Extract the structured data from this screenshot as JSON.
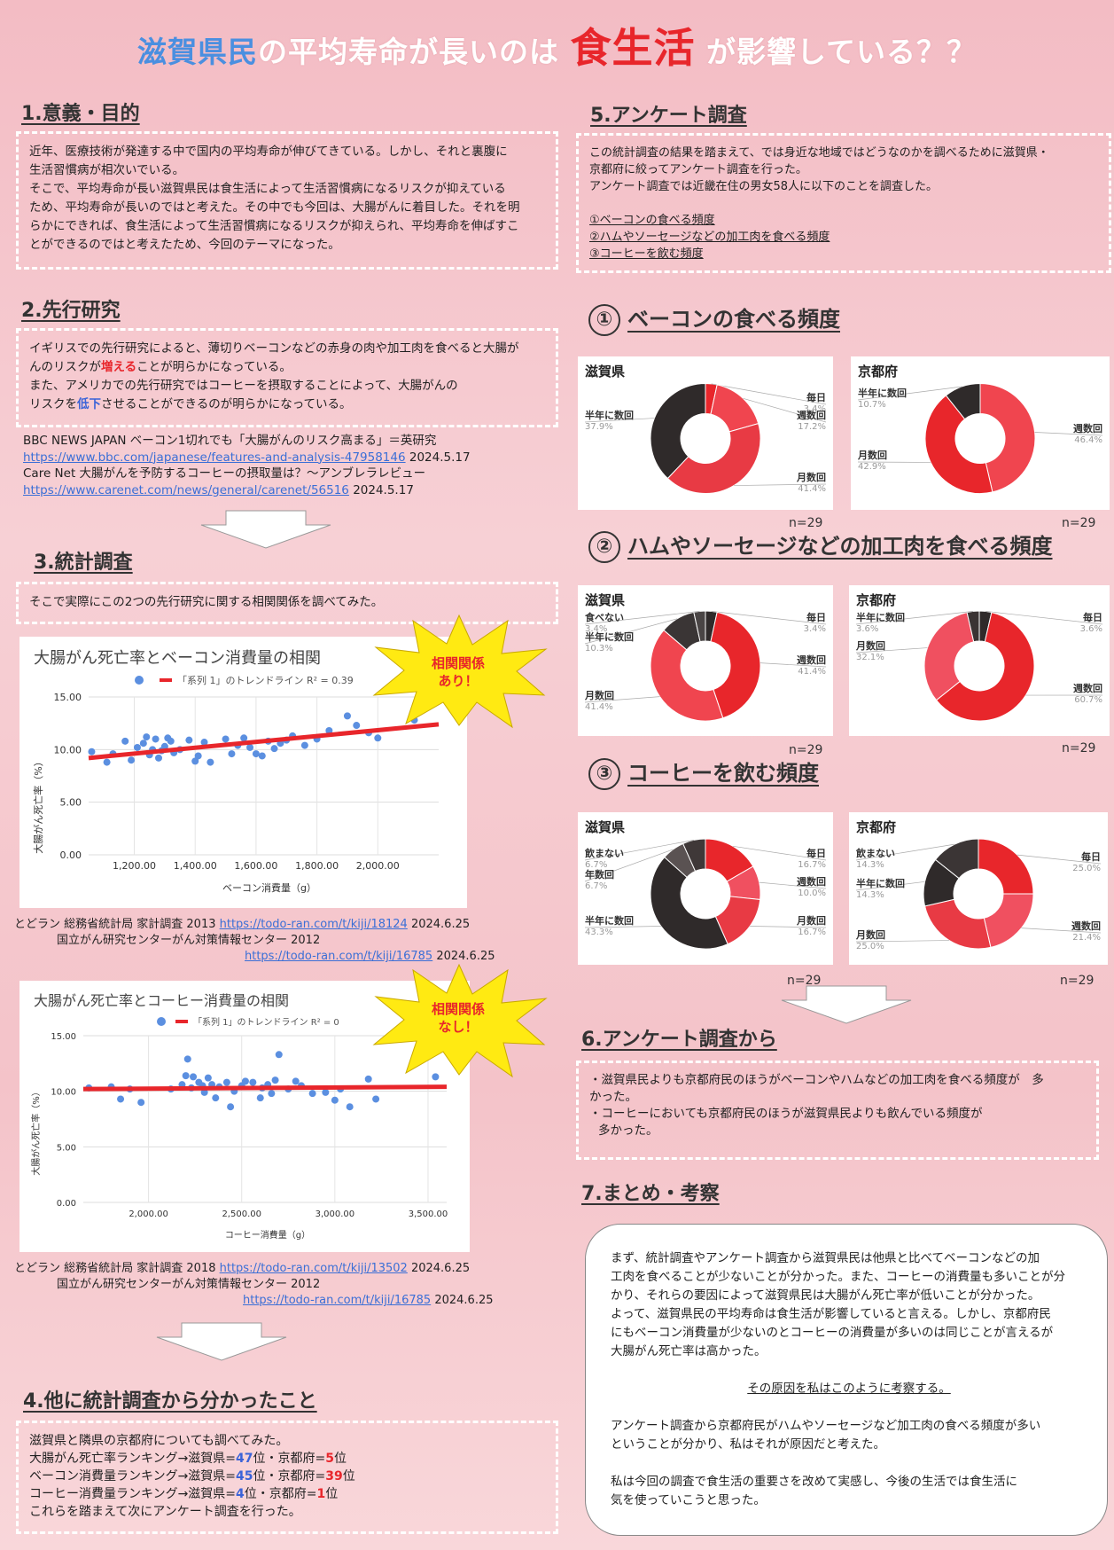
{
  "title": {
    "part1": "滋賀県民",
    "part2": "の平均寿命が長いのは",
    "part3": "食生活",
    "part4": "が影響している？？"
  },
  "s1": {
    "heading": "1.意義・目的",
    "lines": [
      "近年、医療技術が発達する中で国内の平均寿命が伸びてきている。しかし、それと裏腹に",
      "生活習慣病が相次いでいる。",
      "そこで、平均寿命が長い滋賀県民は食生活によって生活習慣病になるリスクが抑えている",
      "ため、平均寿命が長いのではと考えた。その中でも今回は、大腸がんに着目した。それを明",
      "らかにできれば、食生活によって生活習慣病になるリスクが抑えられ、平均寿命を伸ばすこ",
      "とができるのではと考えたため、今回のテーマになった。"
    ]
  },
  "s2": {
    "heading": "2.先行研究",
    "l1": "イギリスでの先行研究によると、薄切りベーコンなどの赤身の肉や加工肉を食べると大腸が",
    "l2a": "んのリスクが",
    "l2b": "増える",
    "l2c": "ことが明らかになっている。",
    "l3": "また、アメリカでの先行研究ではコーヒーを摂取することによって、大腸がんの",
    "l4a": "リスクを",
    "l4b": "低下",
    "l4c": "させることができるのが明らかになっている。",
    "ref1": "BBC NEWS JAPAN ベーコン1切れでも「大腸がんのリスク高まる」＝英研究",
    "ref1url": "https://www.bbc.com/japanese/features-and-analysis-47958146",
    "ref1date": " 2024.5.17",
    "ref2": "Care Net 大腸がんを予防するコーヒーの摂取量は？～アンブレラレビュー",
    "ref2url": "https://www.carenet.com/news/general/carenet/56516",
    "ref2date": " 2024.5.17"
  },
  "s3": {
    "heading": "3.統計調査",
    "intro": "そこで実際にこの2つの先行研究に関する相関関係を調べてみた。",
    "burst1a": "相関関係",
    "burst1b": "あり！",
    "burst2a": "相関関係",
    "burst2b": "なし！",
    "src1a": "とどラン 総務省統計局 家計調査 2013 ",
    "src1url": "https://todo-ran.com/t/kiji/18124",
    "src1date": " 2024.6.25",
    "src1b": "国立がん研究センターがん対策情報センター 2012",
    "src1url2": "https://todo-ran.com/t/kiji/16785",
    "src1date2": " 2024.6.25",
    "src2a": "とどラン 総務省統計局 家計調査 2018 ",
    "src2url": "https://todo-ran.com/t/kiji/13502",
    "src2date": " 2024.6.25",
    "src2b": "国立がん研究センターがん対策情報センター 2012",
    "src2url2": "https://todo-ran.com/t/kiji/16785",
    "src2date2": " 2024.6.25"
  },
  "chart_data": [
    {
      "type": "scatter",
      "title": "大腸がん死亡率とベーコン消費量の相関",
      "xlabel": "ベーコン消費量（g）",
      "ylabel": "大腸がん死亡率（%）",
      "legend": "「系列 1」のトレンドライン R² = 0.39",
      "xlim": [
        1050,
        2200
      ],
      "ylim": [
        0,
        15
      ],
      "xticks": [
        "1,200.00",
        "1,400.00",
        "1,600.00",
        "1,800.00",
        "2,000.00"
      ],
      "yticks": [
        "0.00",
        "5.00",
        "10.00",
        "15.00"
      ],
      "points": [
        [
          1060,
          9.8
        ],
        [
          1110,
          8.8
        ],
        [
          1130,
          9.6
        ],
        [
          1170,
          10.8
        ],
        [
          1190,
          9.0
        ],
        [
          1210,
          10.2
        ],
        [
          1230,
          10.6
        ],
        [
          1240,
          11.2
        ],
        [
          1250,
          9.5
        ],
        [
          1260,
          10.0
        ],
        [
          1270,
          11.0
        ],
        [
          1280,
          9.2
        ],
        [
          1290,
          9.9
        ],
        [
          1300,
          10.3
        ],
        [
          1310,
          11.1
        ],
        [
          1320,
          10.8
        ],
        [
          1330,
          9.7
        ],
        [
          1350,
          10.0
        ],
        [
          1380,
          10.9
        ],
        [
          1400,
          8.9
        ],
        [
          1410,
          9.4
        ],
        [
          1430,
          10.7
        ],
        [
          1450,
          8.8
        ],
        [
          1500,
          11.0
        ],
        [
          1520,
          9.6
        ],
        [
          1540,
          10.4
        ],
        [
          1560,
          11.1
        ],
        [
          1580,
          10.2
        ],
        [
          1600,
          9.6
        ],
        [
          1620,
          9.4
        ],
        [
          1640,
          10.8
        ],
        [
          1660,
          10.1
        ],
        [
          1680,
          10.6
        ],
        [
          1700,
          10.9
        ],
        [
          1720,
          11.3
        ],
        [
          1760,
          10.4
        ],
        [
          1800,
          11.0
        ],
        [
          1840,
          11.8
        ],
        [
          1900,
          13.2
        ],
        [
          1930,
          12.3
        ],
        [
          1970,
          11.6
        ],
        [
          2000,
          11.1
        ],
        [
          2120,
          12.8
        ]
      ],
      "trend": [
        [
          1050,
          9.2
        ],
        [
          2200,
          12.4
        ]
      ]
    },
    {
      "type": "scatter",
      "title": "大腸がん死亡率とコーヒー消費量の相関",
      "xlabel": "コーヒー消費量（g）",
      "ylabel": "大腸がん死亡率（%）",
      "legend": "「系列 1」のトレンドライン R² = 0",
      "xlim": [
        1650,
        3600
      ],
      "ylim": [
        0,
        15
      ],
      "xticks": [
        "2,000.00",
        "2,500.00",
        "3,000.00",
        "3,500.00"
      ],
      "yticks": [
        "0.00",
        "5.00",
        "10.00",
        "15.00"
      ],
      "points": [
        [
          1680,
          10.3
        ],
        [
          1800,
          10.4
        ],
        [
          1850,
          9.3
        ],
        [
          1900,
          10.2
        ],
        [
          1960,
          9.0
        ],
        [
          2120,
          10.2
        ],
        [
          2180,
          10.6
        ],
        [
          2200,
          11.4
        ],
        [
          2210,
          12.9
        ],
        [
          2230,
          10.3
        ],
        [
          2240,
          11.3
        ],
        [
          2270,
          10.8
        ],
        [
          2290,
          10.5
        ],
        [
          2300,
          9.9
        ],
        [
          2320,
          11.2
        ],
        [
          2340,
          10.6
        ],
        [
          2360,
          9.4
        ],
        [
          2380,
          10.4
        ],
        [
          2420,
          10.8
        ],
        [
          2440,
          8.6
        ],
        [
          2460,
          10.0
        ],
        [
          2500,
          10.5
        ],
        [
          2520,
          10.9
        ],
        [
          2560,
          10.8
        ],
        [
          2600,
          9.4
        ],
        [
          2610,
          10.3
        ],
        [
          2640,
          10.6
        ],
        [
          2660,
          9.8
        ],
        [
          2680,
          11.0
        ],
        [
          2700,
          13.3
        ],
        [
          2750,
          10.2
        ],
        [
          2790,
          10.9
        ],
        [
          2820,
          10.5
        ],
        [
          2880,
          9.8
        ],
        [
          2950,
          9.9
        ],
        [
          3000,
          9.2
        ],
        [
          3030,
          10.2
        ],
        [
          3080,
          8.6
        ],
        [
          3180,
          11.1
        ],
        [
          3220,
          9.3
        ],
        [
          3540,
          11.3
        ]
      ],
      "trend": [
        [
          1650,
          10.2
        ],
        [
          3600,
          10.4
        ]
      ]
    },
    {
      "type": "pie",
      "title": "ベーコンの食べる頻度 滋賀県",
      "n": "n=29",
      "slices": [
        {
          "label": "毎日",
          "value": 3.4
        },
        {
          "label": "週数回",
          "value": 17.2
        },
        {
          "label": "月数回",
          "value": 41.4
        },
        {
          "label": "半年に数回",
          "value": 37.9
        }
      ]
    },
    {
      "type": "pie",
      "title": "ベーコンの食べる頻度 京都府",
      "n": "n=29",
      "slices": [
        {
          "label": "週数回",
          "value": 46.4
        },
        {
          "label": "月数回",
          "value": 42.9
        },
        {
          "label": "半年に数回",
          "value": 10.7
        }
      ]
    },
    {
      "type": "pie",
      "title": "加工肉を食べる頻度 滋賀県",
      "n": "n=29",
      "slices": [
        {
          "label": "毎日",
          "value": 3.4
        },
        {
          "label": "週数回",
          "value": 41.4
        },
        {
          "label": "月数回",
          "value": 41.4
        },
        {
          "label": "半年に数回",
          "value": 10.3
        },
        {
          "label": "食べない",
          "value": 3.4
        }
      ]
    },
    {
      "type": "pie",
      "title": "加工肉を食べる頻度 京都府",
      "n": "n=29",
      "slices": [
        {
          "label": "毎日",
          "value": 3.6
        },
        {
          "label": "週数回",
          "value": 60.7
        },
        {
          "label": "月数回",
          "value": 32.1
        },
        {
          "label": "半年に数回",
          "value": 3.6
        }
      ]
    },
    {
      "type": "pie",
      "title": "コーヒーを飲む頻度 滋賀県",
      "n": "n=29",
      "slices": [
        {
          "label": "毎日",
          "value": 16.7
        },
        {
          "label": "週数回",
          "value": 10.0
        },
        {
          "label": "月数回",
          "value": 16.7
        },
        {
          "label": "半年に数回",
          "value": 43.3
        },
        {
          "label": "年数回",
          "value": 6.7
        },
        {
          "label": "飲まない",
          "value": 6.7
        }
      ]
    },
    {
      "type": "pie",
      "title": "コーヒーを飲む頻度 京都府",
      "n": "n=29",
      "slices": [
        {
          "label": "毎日",
          "value": 25.0
        },
        {
          "label": "週数回",
          "value": 21.4
        },
        {
          "label": "月数回",
          "value": 25.0
        },
        {
          "label": "半年に数回",
          "value": 14.3
        },
        {
          "label": "飲まない",
          "value": 14.3
        }
      ]
    }
  ],
  "s4": {
    "heading": "4.他に統計調査から分かったこと",
    "l1": "滋賀県と隣県の京都府についても調べてみた。",
    "r1a": "大腸がん死亡率ランキング→滋賀県=",
    "r1b": "47",
    "r1c": "位・京都府=",
    "r1d": "5",
    "r1e": "位",
    "r2a": "ベーコン消費量ランキング→滋賀県=",
    "r2b": "45",
    "r2c": "位・京都府=",
    "r2d": "39",
    "r2e": "位",
    "r3a": "コーヒー消費量ランキング→滋賀県=",
    "r3b": "4",
    "r3c": "位・京都府=",
    "r3d": "1",
    "r3e": "位",
    "l5": "これらを踏まえて次にアンケート調査を行った。"
  },
  "s5": {
    "heading": "5.アンケート調査",
    "lines": [
      "この統計調査の結果を踏まえて、では身近な地域ではどうなのかを調べるために滋賀県・",
      "京都府に絞ってアンケート調査を行った。",
      "アンケート調査では近畿在住の男女58人に以下のことを調査した。"
    ],
    "q1": "①ベーコンの食べる頻度",
    "q2": "②ハムやソーセージなどの加工肉を食べる頻度",
    "q3": "③コーヒーを飲む頻度",
    "t1n": "①",
    "t1": "ベーコンの食べる頻度",
    "t2n": "②",
    "t2": "ハムやソーセージなどの加工肉を食べる頻度",
    "t3n": "③",
    "t3": "コーヒーを飲む頻度",
    "shiga": "滋賀県",
    "kyoto": "京都府",
    "n": "n=29"
  },
  "s6": {
    "heading": "6.アンケート調査から",
    "l1": "・滋賀県民よりも京都府民のほうがベーコンやハムなどの加工肉を食べる頻度が　多",
    "l2": "かった。",
    "l3": "・コーヒーにおいても京都府民のほうが滋賀県民よりも飲んでいる頻度が",
    "l4": "多かった。"
  },
  "s7": {
    "heading": "7.まとめ・考察",
    "p1": [
      "まず、統計調査やアンケート調査から滋賀県民は他県と比べてベーコンなどの加",
      "工肉を食べることが少ないことが分かった。また、コーヒーの消費量も多いことが分",
      "かり、それらの要因によって滋賀県民は大腸がん死亡率が低いことが分かった。",
      "よって、滋賀県民の平均寿命は食生活が影響していると言える。しかし、京都府民",
      "にもベーコン消費量が少ないのとコーヒーの消費量が多いのは同じことが言えるが",
      "大腸がん死亡率は高かった。"
    ],
    "center": "その原因を私はこのように考察する。",
    "p2": [
      "アンケート調査から京都府民がハムやソーセージなど加工肉の食べる頻度が多い",
      "ということが分かり、私はそれが原因だと考えた。"
    ],
    "p3": [
      "私は今回の調査で食生活の重要さを改めて実感し、今後の生活では食生活に",
      "気を使っていこうと思った。"
    ]
  },
  "colors": {
    "red": "#e8262b",
    "pink": "#f05060",
    "dark": "#2f2a2a",
    "blue": "#4a8fe0"
  }
}
